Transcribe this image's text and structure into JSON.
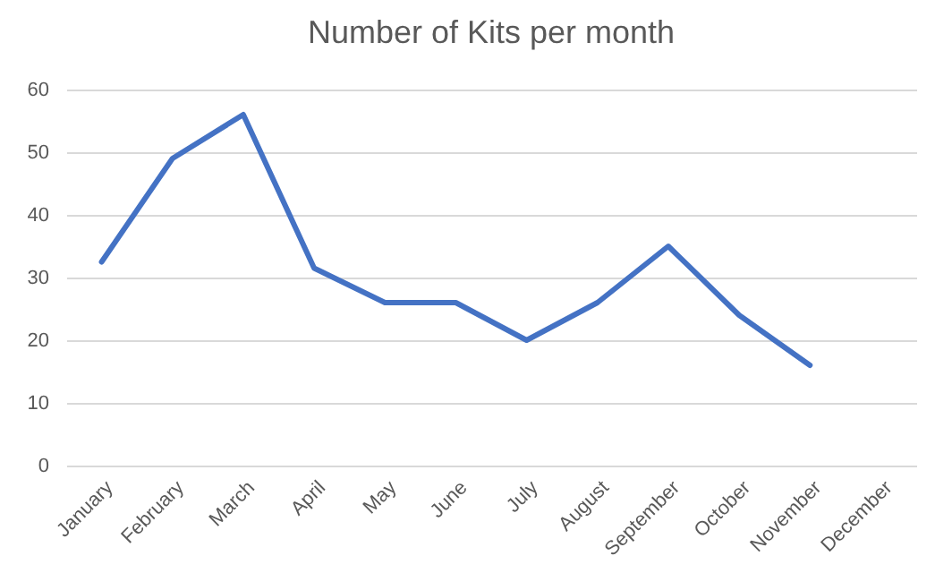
{
  "chart_data": {
    "type": "line",
    "title": "Number of Kits per month",
    "categories": [
      "January",
      "February",
      "March",
      "April",
      "May",
      "June",
      "July",
      "August",
      "September",
      "October",
      "November",
      "December"
    ],
    "series": [
      {
        "color": "#4472c4",
        "values": [
          32.5,
          49,
          56,
          31.5,
          26,
          26,
          20,
          26,
          35,
          24,
          16,
          null
        ]
      }
    ],
    "ylim": [
      0,
      60
    ],
    "yticks": [
      0,
      10,
      20,
      30,
      40,
      50,
      60
    ],
    "grid": "y",
    "legend": false,
    "marker": "none",
    "line_style": "solid"
  }
}
